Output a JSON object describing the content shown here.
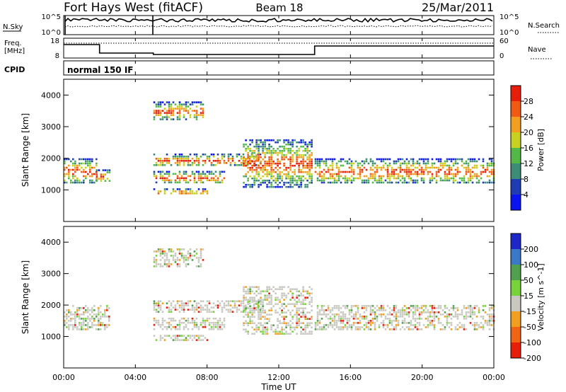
{
  "header": {
    "station": "Fort Hays West (fitACF)",
    "beam": "Beam 18",
    "date": "25/Mar/2011"
  },
  "noise_panel": {
    "left_label": "N.Sky",
    "right_label": "N.Search",
    "left_ticks": [
      "10^5",
      "10^0"
    ],
    "right_ticks": [
      "10^5",
      "10^0"
    ]
  },
  "freq_panel": {
    "left_label_1": "Freq.",
    "left_label_2": "[MHz]",
    "right_label": "Nave",
    "left_ticks": [
      "18",
      "8"
    ],
    "right_ticks": [
      "60",
      "0"
    ]
  },
  "cpid": {
    "label": "CPID",
    "value": "normal 150 IF"
  },
  "chart_data": [
    {
      "type": "heatmap",
      "name": "power",
      "ylabel": "Slant Range [km]",
      "xlabel": "Time UT",
      "xlim": [
        0,
        24
      ],
      "ylim": [
        0,
        4500
      ],
      "x_ticks": [
        "00:00",
        "04:00",
        "08:00",
        "12:00",
        "16:00",
        "20:00",
        "00:00"
      ],
      "y_ticks": [
        1000,
        2000,
        3000,
        4000
      ],
      "colorbar": {
        "label": "Power [dB]",
        "ticks": [
          "4",
          "8",
          "12",
          "16",
          "20",
          "24",
          "28"
        ],
        "colors": [
          "#0a14f0",
          "#1e3cb4",
          "#3c8c78",
          "#52b848",
          "#c8d020",
          "#f0a01e",
          "#f05a14",
          "#e61e0a"
        ]
      },
      "echo_regions": [
        {
          "t_start": 0.0,
          "t_end": 1.8,
          "r_min": 1200,
          "r_max": 2000
        },
        {
          "t_start": 1.8,
          "t_end": 2.6,
          "r_min": 1250,
          "r_max": 1650
        },
        {
          "t_start": 5.0,
          "t_end": 8.0,
          "r_min": 850,
          "r_max": 1050
        },
        {
          "t_start": 5.0,
          "t_end": 9.0,
          "r_min": 1200,
          "r_max": 1600
        },
        {
          "t_start": 5.0,
          "t_end": 11.0,
          "r_min": 1750,
          "r_max": 2150
        },
        {
          "t_start": 5.0,
          "t_end": 7.8,
          "r_min": 3200,
          "r_max": 3800
        },
        {
          "t_start": 10.0,
          "t_end": 13.8,
          "r_min": 1100,
          "r_max": 2600
        },
        {
          "t_start": 14.0,
          "t_end": 24.0,
          "r_min": 1200,
          "r_max": 2000
        }
      ]
    },
    {
      "type": "heatmap",
      "name": "velocity",
      "ylabel": "Slant Range [km]",
      "xlabel": "Time UT",
      "xlim": [
        0,
        24
      ],
      "ylim": [
        0,
        4500
      ],
      "x_ticks": [
        "00:00",
        "04:00",
        "08:00",
        "12:00",
        "16:00",
        "20:00",
        "00:00"
      ],
      "y_ticks": [
        1000,
        2000,
        3000,
        4000
      ],
      "colorbar": {
        "label": "Velocity [m s^-1]",
        "ticks": [
          "200",
          "100",
          "50",
          "15",
          "-15",
          "-50",
          "-100",
          "-200"
        ],
        "colors": [
          "#1e28c8",
          "#3c78c8",
          "#50a050",
          "#78d23c",
          "#c8c8c0",
          "#f0a01e",
          "#f06414",
          "#e61e0a"
        ]
      },
      "echo_regions": [
        {
          "t_start": 0.0,
          "t_end": 2.6,
          "r_min": 1200,
          "r_max": 2000
        },
        {
          "t_start": 5.0,
          "t_end": 8.0,
          "r_min": 850,
          "r_max": 1050
        },
        {
          "t_start": 5.0,
          "t_end": 9.0,
          "r_min": 1200,
          "r_max": 1600
        },
        {
          "t_start": 5.0,
          "t_end": 11.0,
          "r_min": 1750,
          "r_max": 2150
        },
        {
          "t_start": 5.0,
          "t_end": 7.8,
          "r_min": 3200,
          "r_max": 3800
        },
        {
          "t_start": 10.0,
          "t_end": 13.8,
          "r_min": 1100,
          "r_max": 2600
        },
        {
          "t_start": 14.0,
          "t_end": 24.0,
          "r_min": 1200,
          "r_max": 2000
        }
      ]
    }
  ]
}
